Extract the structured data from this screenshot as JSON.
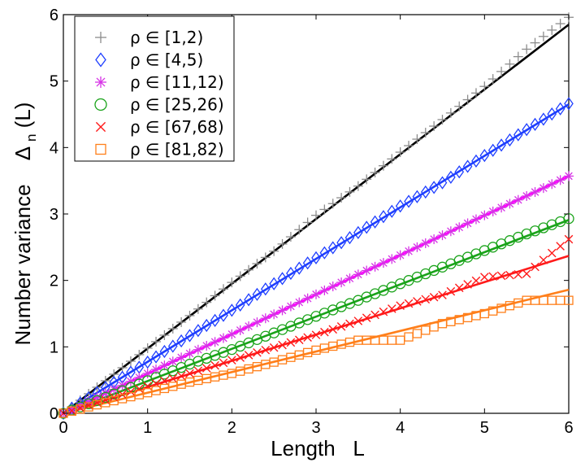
{
  "chart_data": {
    "type": "scatter",
    "title": "",
    "xlabel": "Length   L",
    "ylabel_main": "Number variance",
    "ylabel_symbol": "Δ",
    "ylabel_sub": "n",
    "ylabel_arg": "(L)",
    "xlim": [
      0,
      6
    ],
    "ylim": [
      0,
      6
    ],
    "xticks": [
      "0",
      "1",
      "2",
      "3",
      "4",
      "5",
      "6"
    ],
    "yticks": [
      "0",
      "1",
      "2",
      "3",
      "4",
      "5",
      "6"
    ],
    "grid": false,
    "legend_position": "top-left",
    "series": [
      {
        "name": "ρ ∈ [1,2)",
        "marker": "plus",
        "color": "#8c8c8c",
        "fit_color": "#000000",
        "fit_slope": 0.975,
        "points": [
          [
            0,
            0
          ],
          [
            0.5,
            0.49
          ],
          [
            1,
            0.98
          ],
          [
            1.5,
            1.47
          ],
          [
            2,
            1.97
          ],
          [
            2.5,
            2.44
          ],
          [
            3,
            2.98
          ],
          [
            3.5,
            3.42
          ],
          [
            4,
            3.93
          ],
          [
            4.5,
            4.42
          ],
          [
            5,
            4.92
          ],
          [
            5.5,
            5.48
          ],
          [
            6,
            5.96
          ]
        ]
      },
      {
        "name": "ρ ∈ [4,5)",
        "marker": "diamond",
        "color": "#1f3fff",
        "fit_color": "#1f3fff",
        "fit_slope": 0.775,
        "points": [
          [
            0,
            0
          ],
          [
            0.5,
            0.39
          ],
          [
            1,
            0.77
          ],
          [
            1.5,
            1.17
          ],
          [
            2,
            1.55
          ],
          [
            2.5,
            1.95
          ],
          [
            3,
            2.34
          ],
          [
            3.5,
            2.72
          ],
          [
            4,
            3.12
          ],
          [
            4.5,
            3.47
          ],
          [
            5,
            3.88
          ],
          [
            5.5,
            4.27
          ],
          [
            6,
            4.66
          ]
        ]
      },
      {
        "name": "ρ ∈ [11,12)",
        "marker": "star",
        "color": "#d633e6",
        "fit_color": "#ff00ff",
        "fit_slope": 0.595,
        "points": [
          [
            0,
            0
          ],
          [
            0.5,
            0.3
          ],
          [
            1,
            0.6
          ],
          [
            1.5,
            0.9
          ],
          [
            2,
            1.19
          ],
          [
            2.5,
            1.49
          ],
          [
            3,
            1.79
          ],
          [
            3.5,
            2.09
          ],
          [
            4,
            2.38
          ],
          [
            4.5,
            2.68
          ],
          [
            5,
            2.98
          ],
          [
            5.5,
            3.27
          ],
          [
            6,
            3.57
          ]
        ]
      },
      {
        "name": "ρ ∈ [25,26)",
        "marker": "circle",
        "color": "#1aa31a",
        "fit_color": "#1aa31a",
        "fit_slope": 0.485,
        "points": [
          [
            0,
            0
          ],
          [
            0.5,
            0.24
          ],
          [
            1,
            0.49
          ],
          [
            1.5,
            0.74
          ],
          [
            2,
            0.96
          ],
          [
            2.5,
            1.21
          ],
          [
            3,
            1.46
          ],
          [
            3.5,
            1.7
          ],
          [
            4,
            1.95
          ],
          [
            4.5,
            2.2
          ],
          [
            5,
            2.45
          ],
          [
            5.5,
            2.7
          ],
          [
            6,
            2.93
          ]
        ]
      },
      {
        "name": "ρ ∈ [67,68)",
        "marker": "cross",
        "color": "#ff1a1a",
        "fit_color": "#ff1a1a",
        "fit_slope": 0.395,
        "points": [
          [
            0,
            0
          ],
          [
            0.5,
            0.2
          ],
          [
            1,
            0.41
          ],
          [
            1.5,
            0.6
          ],
          [
            2,
            0.8
          ],
          [
            2.5,
            0.99
          ],
          [
            3,
            1.18
          ],
          [
            3.5,
            1.39
          ],
          [
            4,
            1.62
          ],
          [
            4.5,
            1.78
          ],
          [
            5,
            2.05
          ],
          [
            5.5,
            2.1
          ],
          [
            6,
            2.62
          ]
        ]
      },
      {
        "name": "ρ ∈ [81,82)",
        "marker": "square",
        "color": "#ff7f1a",
        "fit_color": "#ff7f1a",
        "fit_slope": 0.31,
        "points": [
          [
            0,
            0
          ],
          [
            0.5,
            0.16
          ],
          [
            1,
            0.31
          ],
          [
            1.5,
            0.47
          ],
          [
            2,
            0.6
          ],
          [
            2.5,
            0.77
          ],
          [
            3,
            0.95
          ],
          [
            3.5,
            1.1
          ],
          [
            4,
            1.1
          ],
          [
            4.5,
            1.35
          ],
          [
            5,
            1.5
          ],
          [
            5.5,
            1.7
          ],
          [
            6,
            1.7
          ]
        ]
      }
    ]
  }
}
